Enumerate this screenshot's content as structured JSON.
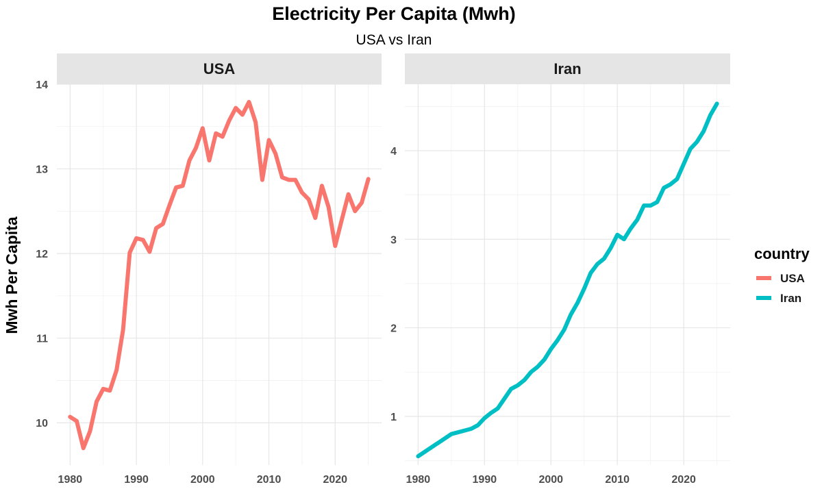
{
  "chart_data": {
    "type": "line",
    "title": "Electricity Per Capita (Mwh)",
    "subtitle": "USA vs Iran",
    "ylabel": "Mwh Per Capita",
    "legend": {
      "title": "country",
      "position": "right",
      "items": [
        {
          "label": "USA",
          "color": "#F8766D"
        },
        {
          "label": "Iran",
          "color": "#00BFC4"
        }
      ]
    },
    "grid": true,
    "panels": [
      {
        "label": "USA",
        "color": "#F8766D",
        "xlim": [
          1978,
          2027
        ],
        "ylim": [
          9.5,
          14.0
        ],
        "x_ticks": [
          1980,
          1990,
          2000,
          2010,
          2020
        ],
        "y_ticks": [
          10,
          11,
          12,
          13,
          14
        ],
        "x": [
          1980,
          1981,
          1982,
          1983,
          1984,
          1985,
          1986,
          1987,
          1988,
          1989,
          1990,
          1991,
          1992,
          1993,
          1994,
          1995,
          1996,
          1997,
          1998,
          1999,
          2000,
          2001,
          2002,
          2003,
          2004,
          2005,
          2006,
          2007,
          2008,
          2009,
          2010,
          2011,
          2012,
          2013,
          2014,
          2015,
          2016,
          2017,
          2018,
          2019,
          2020,
          2021,
          2022,
          2023,
          2024,
          2025
        ],
        "y": [
          10.07,
          10.02,
          9.7,
          9.9,
          10.25,
          10.4,
          10.38,
          10.62,
          11.1,
          12.01,
          12.18,
          12.16,
          12.02,
          12.3,
          12.35,
          12.57,
          12.78,
          12.8,
          13.1,
          13.25,
          13.48,
          13.1,
          13.42,
          13.38,
          13.57,
          13.72,
          13.64,
          13.79,
          13.55,
          12.87,
          13.34,
          13.18,
          12.9,
          12.87,
          12.87,
          12.72,
          12.64,
          12.42,
          12.8,
          12.55,
          12.09,
          12.4,
          12.7,
          12.5,
          12.6,
          12.88
        ]
      },
      {
        "label": "Iran",
        "color": "#00BFC4",
        "xlim": [
          1978,
          2027
        ],
        "ylim": [
          0.45,
          4.75
        ],
        "x_ticks": [
          1980,
          1990,
          2000,
          2010,
          2020
        ],
        "y_ticks": [
          1,
          2,
          3,
          4
        ],
        "x": [
          1980,
          1981,
          1982,
          1983,
          1984,
          1985,
          1986,
          1987,
          1988,
          1989,
          1990,
          1991,
          1992,
          1993,
          1994,
          1995,
          1996,
          1997,
          1998,
          1999,
          2000,
          2001,
          2002,
          2003,
          2004,
          2005,
          2006,
          2007,
          2008,
          2009,
          2010,
          2011,
          2012,
          2013,
          2014,
          2015,
          2016,
          2017,
          2018,
          2019,
          2020,
          2021,
          2022,
          2023,
          2024,
          2025
        ],
        "y": [
          0.55,
          0.6,
          0.65,
          0.7,
          0.75,
          0.8,
          0.82,
          0.84,
          0.86,
          0.9,
          0.98,
          1.04,
          1.09,
          1.2,
          1.31,
          1.35,
          1.41,
          1.5,
          1.56,
          1.64,
          1.76,
          1.86,
          1.98,
          2.15,
          2.28,
          2.44,
          2.62,
          2.72,
          2.78,
          2.9,
          3.05,
          3.0,
          3.12,
          3.22,
          3.38,
          3.38,
          3.42,
          3.58,
          3.62,
          3.68,
          3.85,
          4.02,
          4.1,
          4.22,
          4.4,
          4.53
        ]
      }
    ]
  }
}
